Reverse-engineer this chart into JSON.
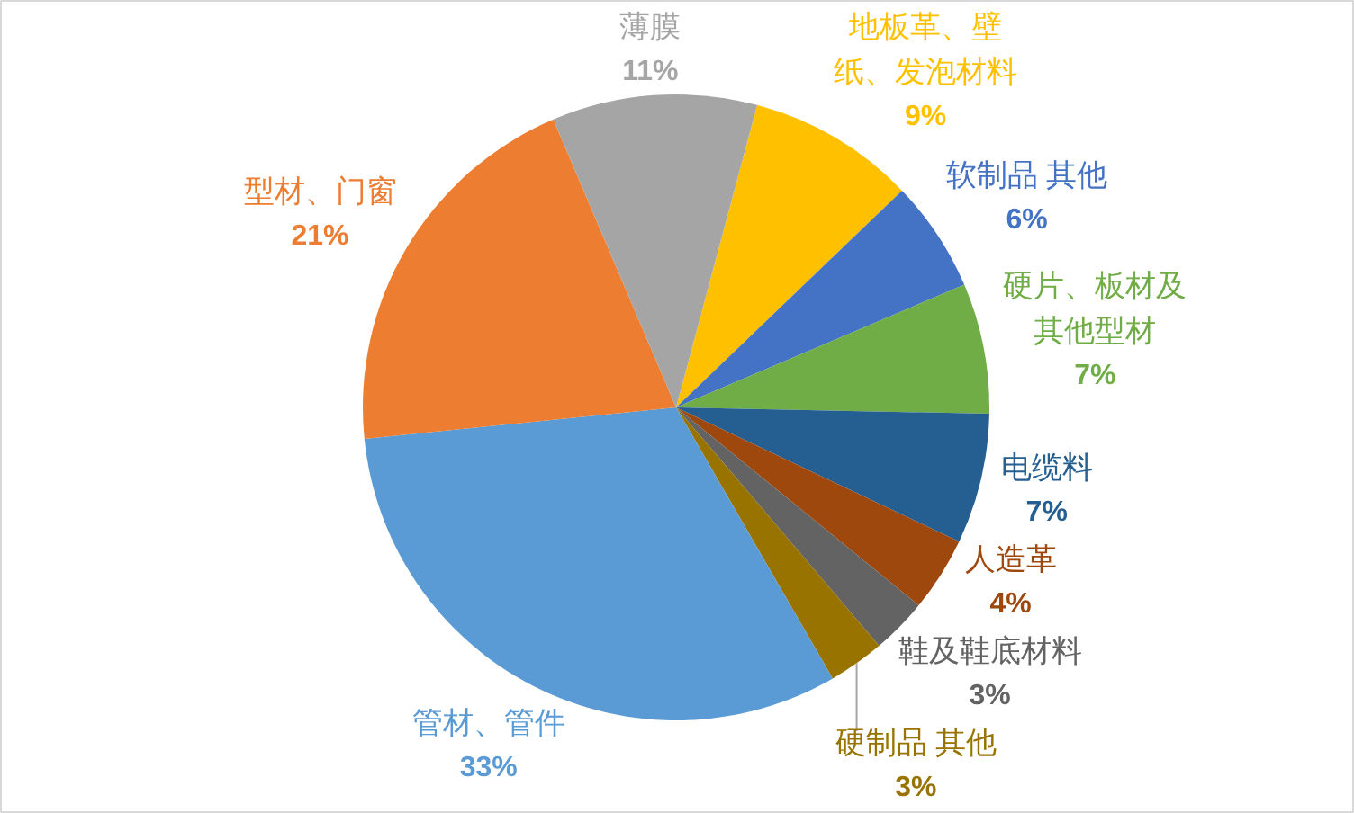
{
  "chart_data": {
    "type": "pie",
    "categories": [
      "地板革、壁纸、发泡材料",
      "软制品 其他",
      "硬片、板材及其他型材",
      "电缆料",
      "人造革",
      "鞋及鞋底材料",
      "硬制品 其他",
      "管材、管件",
      "型材、门窗",
      "薄膜"
    ],
    "values": [
      9,
      6,
      7,
      7,
      4,
      3,
      3,
      33,
      21,
      11
    ],
    "colors": [
      "#ffc000",
      "#4472c4",
      "#70ad47",
      "#255e91",
      "#9e480e",
      "#636363",
      "#997300",
      "#5b9bd5",
      "#ed7d31",
      "#a5a5a5"
    ],
    "value_labels": [
      "9%",
      "6%",
      "7%",
      "7%",
      "4%",
      "3%",
      "3%",
      "33%",
      "21%",
      "11%"
    ]
  }
}
